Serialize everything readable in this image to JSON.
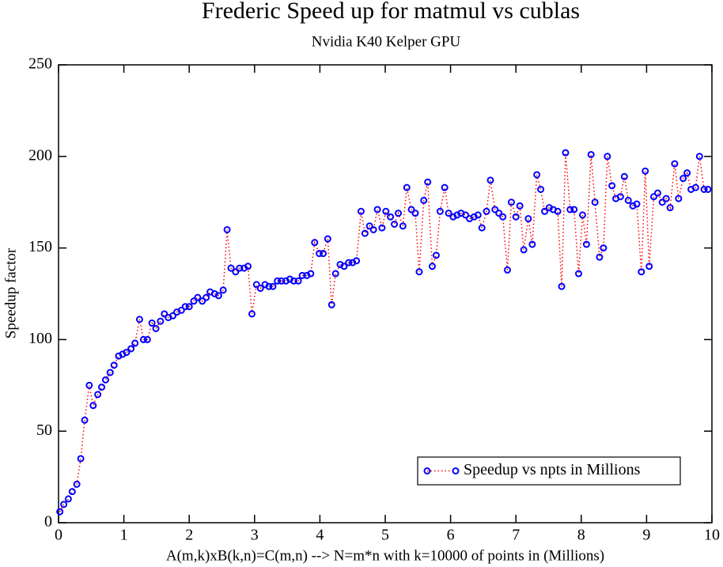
{
  "chart_data": {
    "type": "line",
    "title": "Frederic Speed up for matmul vs cublas",
    "subtitle": "Nvidia K40 Kelper GPU",
    "x_label": "A(m,k)xB(k,n)=C(m,n) --> N=m*n with k=10000 of points in (Millions)",
    "y_label": "Speedup factor",
    "x": [
      0.02,
      0.08,
      0.15,
      0.21,
      0.28,
      0.34,
      0.4,
      0.47,
      0.53,
      0.6,
      0.66,
      0.72,
      0.79,
      0.85,
      0.92,
      0.98,
      1.04,
      1.11,
      1.17,
      1.24,
      1.3,
      1.36,
      1.43,
      1.49,
      1.56,
      1.62,
      1.68,
      1.75,
      1.81,
      1.88,
      1.94,
      2.0,
      2.07,
      2.13,
      2.2,
      2.26,
      2.32,
      2.39,
      2.45,
      2.52,
      2.58,
      2.64,
      2.71,
      2.77,
      2.84,
      2.9,
      2.96,
      3.03,
      3.09,
      3.16,
      3.22,
      3.28,
      3.35,
      3.41,
      3.48,
      3.54,
      3.6,
      3.67,
      3.73,
      3.8,
      3.86,
      3.92,
      3.99,
      4.05,
      4.12,
      4.18,
      4.24,
      4.31,
      4.37,
      4.44,
      4.5,
      4.56,
      4.63,
      4.69,
      4.76,
      4.82,
      4.88,
      4.95,
      5.01,
      5.08,
      5.14,
      5.2,
      5.27,
      5.33,
      5.4,
      5.46,
      5.52,
      5.59,
      5.65,
      5.72,
      5.78,
      5.84,
      5.91,
      5.97,
      6.04,
      6.1,
      6.16,
      6.23,
      6.29,
      6.36,
      6.42,
      6.48,
      6.55,
      6.61,
      6.68,
      6.74,
      6.8,
      6.87,
      6.93,
      7.0,
      7.06,
      7.12,
      7.19,
      7.25,
      7.32,
      7.38,
      7.44,
      7.51,
      7.57,
      7.64,
      7.7,
      7.76,
      7.83,
      7.89,
      7.96,
      8.02,
      8.08,
      8.15,
      8.21,
      8.28,
      8.34,
      8.4,
      8.47,
      8.53,
      8.6,
      8.66,
      8.72,
      8.79,
      8.85,
      8.92,
      8.98,
      9.04,
      9.11,
      9.17,
      9.24,
      9.3,
      9.36,
      9.43,
      9.49,
      9.56,
      9.62,
      9.68,
      9.75,
      9.81,
      9.88,
      9.94
    ],
    "series": [
      {
        "name": "Speedup vs npts in Millions",
        "color": "#0000ff",
        "line_color": "#ff0000",
        "values": [
          6,
          10,
          13,
          17,
          21,
          35,
          56,
          75,
          64,
          70,
          74,
          78,
          82,
          86,
          91,
          92,
          93,
          95,
          98,
          111,
          100,
          100,
          109,
          106,
          110,
          114,
          112,
          113,
          115,
          116,
          118,
          118,
          121,
          123,
          121,
          123,
          126,
          125,
          124,
          127,
          160,
          139,
          137,
          139,
          139,
          140,
          114,
          130,
          128,
          130,
          129,
          129,
          132,
          132,
          132,
          133,
          132,
          132,
          135,
          135,
          136,
          153,
          147,
          147,
          155,
          119,
          136,
          141,
          140,
          142,
          142,
          143,
          170,
          158,
          162,
          160,
          171,
          161,
          170,
          167,
          163,
          169,
          162,
          183,
          171,
          169,
          137,
          176,
          186,
          140,
          146,
          170,
          183,
          169,
          167,
          168,
          169,
          168,
          166,
          167,
          168,
          161,
          170,
          187,
          171,
          169,
          167,
          138,
          175,
          167,
          173,
          149,
          166,
          152,
          190,
          182,
          170,
          172,
          171,
          170,
          129,
          202,
          171,
          171,
          136,
          168,
          152,
          201,
          175,
          145,
          150,
          200,
          184,
          177,
          178,
          189,
          176,
          173,
          174,
          137,
          192,
          140,
          178,
          180,
          175,
          177,
          172,
          196,
          177,
          188,
          191,
          182,
          183,
          200,
          182,
          182
        ]
      }
    ],
    "xlim": [
      0,
      10
    ],
    "ylim": [
      0,
      250
    ],
    "xticks": [
      0,
      1,
      2,
      3,
      4,
      5,
      6,
      7,
      8,
      9,
      10
    ],
    "yticks": [
      0,
      50,
      100,
      150,
      200,
      250
    ],
    "legend": "lower right"
  }
}
